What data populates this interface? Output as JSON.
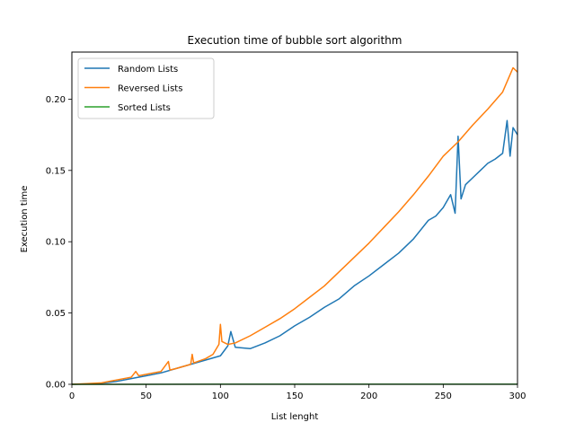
{
  "chart_data": {
    "type": "line",
    "title": "Execution time of bubble sort algorithm",
    "xlabel": "List lenght",
    "ylabel": "Execution time",
    "xlim": [
      0,
      300
    ],
    "ylim": [
      0,
      0.233
    ],
    "xticks": [
      0,
      50,
      100,
      150,
      200,
      250,
      300
    ],
    "xtick_labels": [
      "0",
      "50",
      "100",
      "150",
      "200",
      "250",
      "300"
    ],
    "yticks": [
      0.0,
      0.05,
      0.1,
      0.15,
      0.2
    ],
    "ytick_labels": [
      "0.00",
      "0.05",
      "0.10",
      "0.15",
      "0.20"
    ],
    "grid": false,
    "legend_position": "upper-left",
    "series": [
      {
        "name": "Random Lists",
        "color": "#1f77b4",
        "x": [
          0,
          10,
          20,
          30,
          40,
          50,
          60,
          70,
          80,
          90,
          100,
          105,
          107,
          110,
          120,
          130,
          140,
          150,
          160,
          170,
          180,
          190,
          200,
          210,
          220,
          230,
          240,
          245,
          250,
          255,
          258,
          260,
          262,
          265,
          270,
          275,
          280,
          285,
          290,
          293,
          295,
          297,
          300
        ],
        "y": [
          0,
          0.0002,
          0.0008,
          0.002,
          0.004,
          0.006,
          0.008,
          0.011,
          0.014,
          0.017,
          0.02,
          0.027,
          0.037,
          0.026,
          0.025,
          0.029,
          0.034,
          0.041,
          0.047,
          0.054,
          0.06,
          0.069,
          0.076,
          0.084,
          0.092,
          0.102,
          0.115,
          0.118,
          0.124,
          0.133,
          0.12,
          0.174,
          0.13,
          0.14,
          0.145,
          0.15,
          0.155,
          0.158,
          0.162,
          0.185,
          0.16,
          0.18,
          0.175
        ]
      },
      {
        "name": "Reversed Lists",
        "color": "#ff7f0e",
        "x": [
          0,
          10,
          20,
          30,
          40,
          43,
          45,
          50,
          60,
          65,
          66,
          70,
          80,
          81,
          82,
          90,
          95,
          99,
          100,
          101,
          105,
          110,
          120,
          130,
          140,
          150,
          160,
          170,
          180,
          190,
          200,
          210,
          220,
          230,
          240,
          250,
          260,
          270,
          280,
          290,
          297,
          300
        ],
        "y": [
          0,
          0.0005,
          0.001,
          0.003,
          0.005,
          0.009,
          0.006,
          0.007,
          0.009,
          0.016,
          0.01,
          0.011,
          0.014,
          0.021,
          0.015,
          0.018,
          0.021,
          0.028,
          0.042,
          0.03,
          0.028,
          0.029,
          0.034,
          0.04,
          0.046,
          0.053,
          0.061,
          0.069,
          0.079,
          0.089,
          0.099,
          0.11,
          0.121,
          0.133,
          0.146,
          0.16,
          0.17,
          0.182,
          0.193,
          0.205,
          0.222,
          0.219
        ]
      },
      {
        "name": "Sorted Lists",
        "color": "#2ca02c",
        "x": [
          0,
          50,
          100,
          150,
          200,
          250,
          300
        ],
        "y": [
          0,
          0,
          0.0001,
          0.0001,
          0.0001,
          0.0001,
          0.0001
        ]
      }
    ]
  }
}
